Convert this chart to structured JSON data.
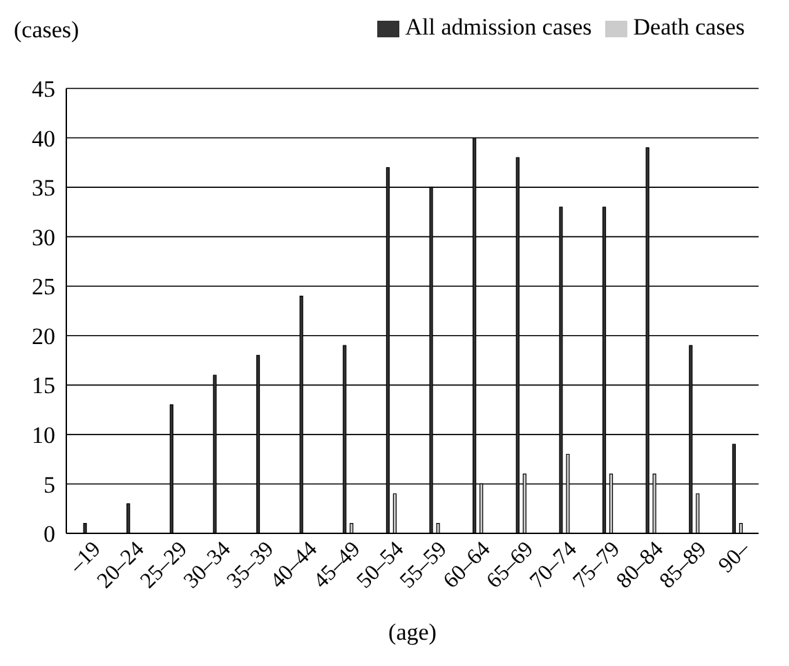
{
  "chart_data": {
    "type": "bar",
    "xlabel": "(age)",
    "ylabel": "(cases)",
    "categories": [
      "–19",
      "20–24",
      "25–29",
      "30–34",
      "35–39",
      "40–44",
      "45–49",
      "50–54",
      "55–59",
      "60–64",
      "65–69",
      "70–74",
      "75–79",
      "80–84",
      "85–89",
      "90–"
    ],
    "series": [
      {
        "name": "All admission cases",
        "color": "#333333",
        "values": [
          1,
          3,
          13,
          16,
          18,
          24,
          19,
          37,
          35,
          40,
          38,
          33,
          33,
          39,
          19,
          9
        ]
      },
      {
        "name": "Death cases",
        "color": "#cccccc",
        "values": [
          null,
          null,
          null,
          null,
          null,
          null,
          1,
          4,
          1,
          5,
          6,
          8,
          6,
          6,
          4,
          1
        ]
      }
    ],
    "ylim": [
      0,
      45
    ],
    "yticks": [
      0,
      5,
      10,
      15,
      20,
      25,
      30,
      35,
      40,
      45
    ],
    "grid": "y",
    "legend": "top right"
  }
}
